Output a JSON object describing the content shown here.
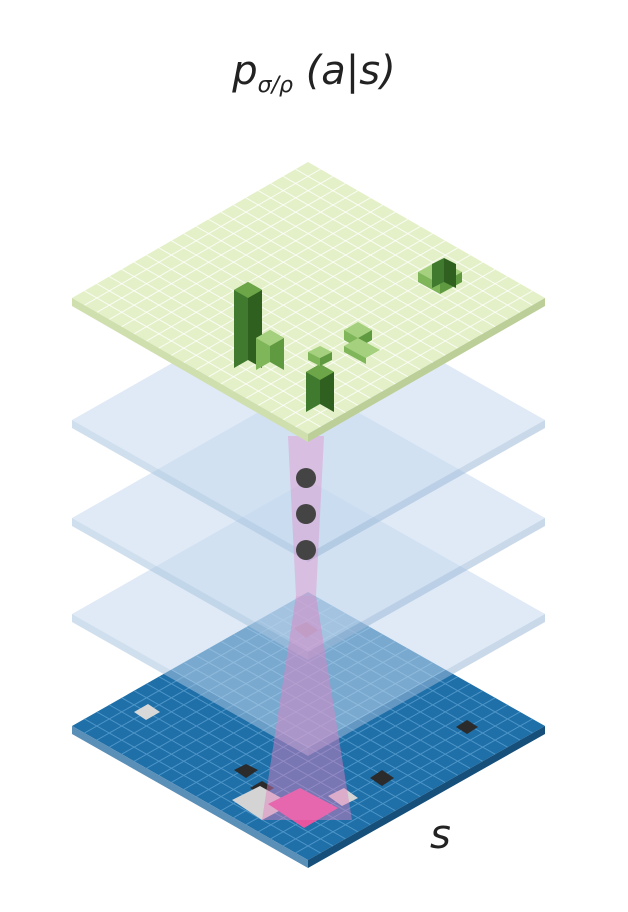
{
  "title": {
    "main": "p",
    "subscript": "σ/ρ",
    "argument": "(a|s)"
  },
  "input_label": "s",
  "colors": {
    "output_plane": "#e4f0c8",
    "output_grid": "#ffffff",
    "hidden_plane": "#c4d8ee",
    "input_plane": "#1f6fa8",
    "input_grid": "#5aa0d0",
    "bar_green_dark": "#3f7a2e",
    "bar_green_light": "#7fb659",
    "beam": "#e57fc2",
    "dot": "#444444",
    "stone_black": "#2b2b2b",
    "stone_white": "#d9d9d9",
    "highlight_pink": "#e8559f"
  }
}
